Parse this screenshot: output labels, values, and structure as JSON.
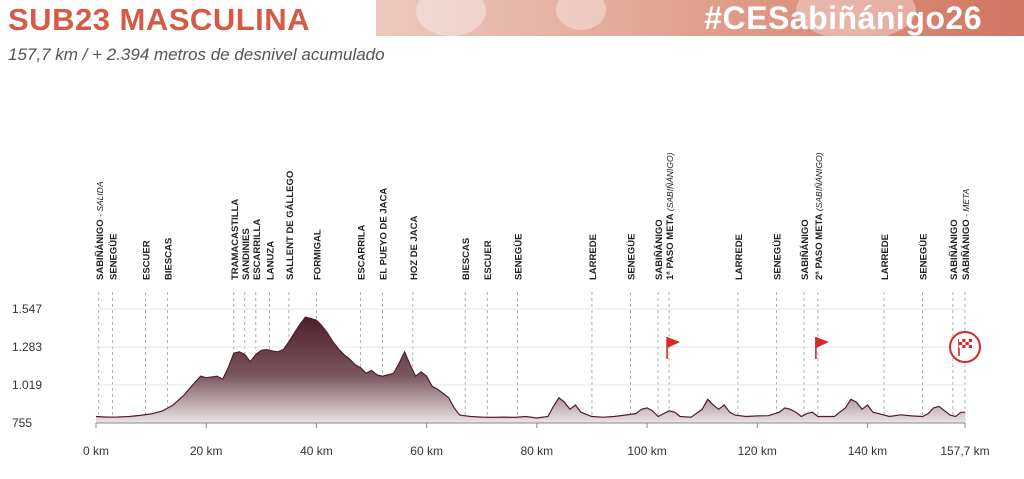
{
  "header": {
    "title": "SUB23 MASCULINA",
    "hashtag": "#CESabiñánigo26",
    "subtitle": "157,7 km / + 2.394 metros de desnivel acumulado"
  },
  "colors": {
    "title": "#d65a45",
    "profile_top": "#5a2a35",
    "profile_bottom": "#e3d8da",
    "flag": "#d42a2a",
    "axis_text": "#333333"
  },
  "chart_data": {
    "type": "area",
    "title": "",
    "xlabel": "",
    "ylabel": "",
    "xlim": [
      0,
      157.7
    ],
    "ylim": [
      755,
      1547
    ],
    "grid": false,
    "x_ticks": [
      {
        "value": 0,
        "label": "0 km"
      },
      {
        "value": 20,
        "label": "20 km"
      },
      {
        "value": 40,
        "label": "40 km"
      },
      {
        "value": 60,
        "label": "60 km"
      },
      {
        "value": 80,
        "label": "80 km"
      },
      {
        "value": 100,
        "label": "100 km"
      },
      {
        "value": 120,
        "label": "120 km"
      },
      {
        "value": 140,
        "label": "140 km"
      },
      {
        "value": 157.7,
        "label": "157,7 km"
      }
    ],
    "y_ticks": [
      {
        "value": 1547,
        "label": "1.547"
      },
      {
        "value": 1283,
        "label": "1.283"
      },
      {
        "value": 1019,
        "label": "1.019"
      },
      {
        "value": 755,
        "label": "755"
      }
    ],
    "profile": {
      "x": [
        0,
        2,
        4,
        6,
        8,
        10,
        12,
        14,
        16,
        18,
        19,
        20,
        22,
        23,
        24,
        25,
        26,
        27,
        28,
        29,
        30,
        31,
        32,
        33,
        34,
        35,
        36,
        37,
        38,
        39,
        40,
        41,
        42,
        43,
        44,
        45,
        46,
        47,
        48,
        49,
        50,
        51,
        52,
        53,
        54,
        55,
        56,
        57,
        58,
        59,
        60,
        61,
        62,
        63,
        64,
        65,
        66,
        68,
        70,
        72,
        74,
        76,
        78,
        80,
        82,
        83,
        84,
        85,
        86,
        87,
        88,
        90,
        92,
        94,
        96,
        98,
        99,
        100,
        101,
        102,
        103,
        104,
        105,
        106,
        108,
        110,
        111,
        112,
        113,
        114,
        115,
        116,
        118,
        120,
        122,
        124,
        125,
        126,
        127,
        128,
        129,
        130,
        131,
        132,
        134,
        136,
        137,
        138,
        139,
        140,
        141,
        142,
        144,
        146,
        148,
        150,
        151,
        152,
        153,
        154,
        155,
        156,
        157,
        157.7
      ],
      "y": [
        800,
        796,
        797,
        800,
        808,
        818,
        838,
        880,
        950,
        1040,
        1080,
        1070,
        1080,
        1060,
        1140,
        1240,
        1250,
        1230,
        1180,
        1230,
        1260,
        1265,
        1255,
        1250,
        1265,
        1320,
        1380,
        1440,
        1490,
        1480,
        1470,
        1430,
        1380,
        1320,
        1270,
        1230,
        1200,
        1160,
        1140,
        1100,
        1120,
        1090,
        1080,
        1090,
        1100,
        1170,
        1250,
        1160,
        1080,
        1110,
        1080,
        1010,
        990,
        960,
        930,
        860,
        810,
        800,
        796,
        794,
        796,
        794,
        800,
        790,
        800,
        870,
        930,
        900,
        850,
        880,
        830,
        800,
        795,
        800,
        810,
        820,
        850,
        860,
        840,
        800,
        820,
        840,
        830,
        800,
        795,
        850,
        920,
        880,
        850,
        880,
        830,
        810,
        800,
        804,
        806,
        830,
        860,
        850,
        830,
        800,
        820,
        830,
        800,
        800,
        800,
        860,
        920,
        900,
        850,
        880,
        830,
        820,
        800,
        812,
        804,
        800,
        820,
        860,
        870,
        840,
        810,
        800,
        830,
        830
      ]
    },
    "locations": [
      {
        "km": 0.5,
        "name": "SABIÑÁNIGO",
        "note": "- SALIDA"
      },
      {
        "km": 3,
        "name": "SENEGÜE",
        "note": ""
      },
      {
        "km": 9,
        "name": "ESCUER",
        "note": ""
      },
      {
        "km": 13,
        "name": "BIESCAS",
        "note": ""
      },
      {
        "km": 25,
        "name": "TRAMACASTILLA",
        "note": ""
      },
      {
        "km": 27,
        "name": "SANDINIES",
        "note": ""
      },
      {
        "km": 29,
        "name": "ESCARRILLA",
        "note": ""
      },
      {
        "km": 31.5,
        "name": "LANUZA",
        "note": ""
      },
      {
        "km": 35,
        "name": "SALLENT DE GÁLLEGO",
        "note": ""
      },
      {
        "km": 40,
        "name": "FORMIGAL",
        "note": ""
      },
      {
        "km": 48,
        "name": "ESCARRILA",
        "note": ""
      },
      {
        "km": 52,
        "name": "EL PUEYO DE JACA",
        "note": ""
      },
      {
        "km": 57.5,
        "name": "HOZ DE JACA",
        "note": ""
      },
      {
        "km": 67,
        "name": "BIESCAS",
        "note": ""
      },
      {
        "km": 71,
        "name": "ESCUER",
        "note": ""
      },
      {
        "km": 76.5,
        "name": "SENEGÜE",
        "note": ""
      },
      {
        "km": 90,
        "name": "LARREDE",
        "note": ""
      },
      {
        "km": 97,
        "name": "SENEGÜE",
        "note": ""
      },
      {
        "km": 102,
        "name": "SABIÑÁNIGO",
        "note": ""
      },
      {
        "km": 104,
        "name": "1ª PASO META",
        "note": "(SABIÑÁNIGO)"
      },
      {
        "km": 116.5,
        "name": "LARREDE",
        "note": ""
      },
      {
        "km": 123.5,
        "name": "SENEGÜE",
        "note": ""
      },
      {
        "km": 128.5,
        "name": "SABIÑÁNIGO",
        "note": ""
      },
      {
        "km": 131,
        "name": "2ª PASO META",
        "note": "(SABIÑÁNIGO)"
      },
      {
        "km": 143,
        "name": "LARREDE",
        "note": ""
      },
      {
        "km": 150,
        "name": "SENEGÜE",
        "note": ""
      },
      {
        "km": 155.5,
        "name": "SABIÑÁNIGO",
        "note": ""
      },
      {
        "km": 157.7,
        "name": "SABIÑÁNIGO",
        "note": "- META"
      }
    ],
    "markers": [
      {
        "km": 104,
        "type": "flag",
        "label": "1ª PASO META"
      },
      {
        "km": 131,
        "type": "flag",
        "label": "2ª PASO META"
      },
      {
        "km": 157.7,
        "type": "finish-flag",
        "label": "META"
      }
    ]
  }
}
